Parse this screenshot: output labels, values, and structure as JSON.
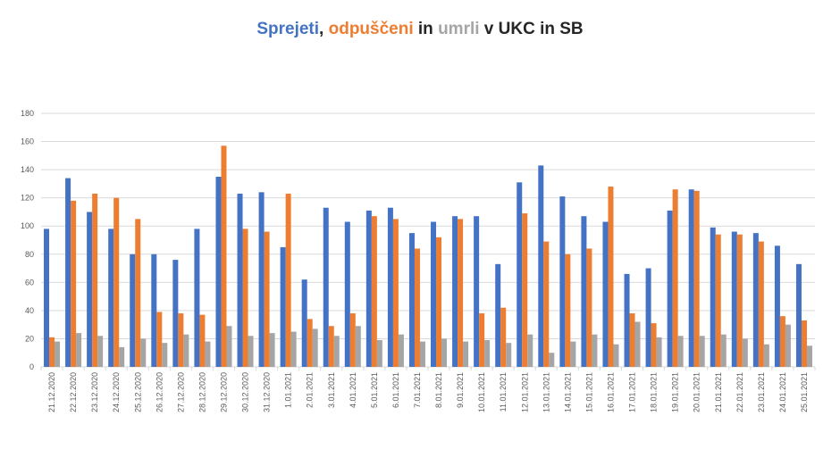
{
  "chart_data": {
    "type": "bar",
    "title_parts": [
      {
        "text": "Sprejeti",
        "color": "#4472C4"
      },
      {
        "text": ", ",
        "color": "#262626"
      },
      {
        "text": "odpuščeni",
        "color": "#ED7D31"
      },
      {
        "text": " in ",
        "color": "#262626"
      },
      {
        "text": "umrli",
        "color": "#A5A5A5"
      },
      {
        "text": " v UKC in SB",
        "color": "#262626"
      }
    ],
    "categories": [
      "21.12.2020",
      "22.12.2020",
      "23.12.2020",
      "24.12.2020",
      "25.12.2020",
      "26.12.2020",
      "27.12.2020",
      "28.12.2020",
      "29.12.2020",
      "30.12.2020",
      "31.12.2020",
      "1.01.2021",
      "2.01.2021",
      "3.01.2021",
      "4.01.2021",
      "5.01.2021",
      "6.01.2021",
      "7.01.2021",
      "8.01.2021",
      "9.01.2021",
      "10.01.2021",
      "11.01.2021",
      "12.01.2021",
      "13.01.2021",
      "14.01.2021",
      "15.01.2021",
      "16.01.2021",
      "17.01.2021",
      "18.01.2021",
      "19.01.2021",
      "20.01.2021",
      "21.01.2021",
      "22.01.2021",
      "23.01.2021",
      "24.01.2021",
      "25.01.2021"
    ],
    "series": [
      {
        "name": "Sprejeti",
        "color": "#4472C4",
        "values": [
          98,
          134,
          110,
          98,
          80,
          80,
          76,
          98,
          135,
          123,
          124,
          85,
          62,
          113,
          103,
          111,
          113,
          95,
          103,
          107,
          107,
          73,
          131,
          143,
          121,
          107,
          103,
          66,
          70,
          111,
          126,
          99,
          96,
          95,
          86,
          73
        ]
      },
      {
        "name": "odpuščeni",
        "color": "#ED7D31",
        "values": [
          21,
          118,
          123,
          120,
          105,
          39,
          38,
          37,
          157,
          98,
          96,
          123,
          34,
          29,
          38,
          107,
          105,
          84,
          92,
          105,
          38,
          42,
          109,
          89,
          80,
          84,
          128,
          38,
          31,
          126,
          125,
          94,
          94,
          89,
          36,
          33
        ]
      },
      {
        "name": "umrli",
        "color": "#A5A5A5",
        "values": [
          18,
          24,
          22,
          14,
          20,
          17,
          23,
          18,
          29,
          22,
          24,
          25,
          27,
          22,
          29,
          19,
          23,
          18,
          20,
          18,
          19,
          17,
          23,
          10,
          18,
          23,
          16,
          32,
          21,
          22,
          22,
          23,
          20,
          16,
          30,
          15
        ]
      }
    ],
    "ylim": [
      0,
      180
    ],
    "yticks": [
      0,
      20,
      40,
      60,
      80,
      100,
      120,
      140,
      160,
      180
    ],
    "grid": true,
    "legend": "none (title acts as legend)"
  }
}
